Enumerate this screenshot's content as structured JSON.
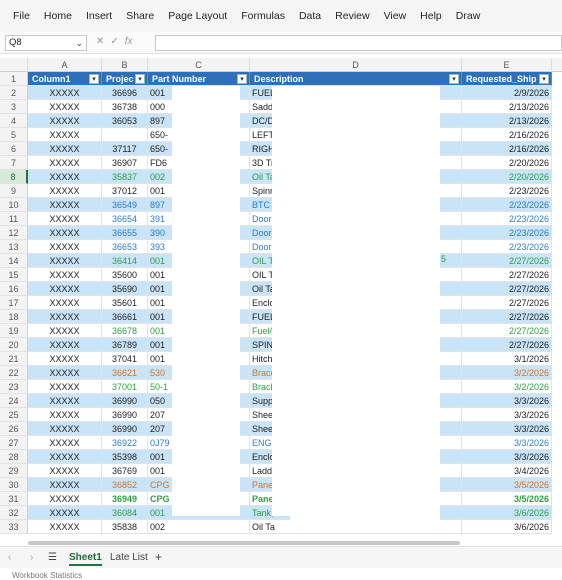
{
  "menu": [
    "File",
    "Home",
    "Insert",
    "Share",
    "Page Layout",
    "Formulas",
    "Data",
    "Review",
    "View",
    "Help",
    "Draw"
  ],
  "name_box": "Q8",
  "col_letters": [
    "A",
    "B",
    "C",
    "D",
    "E"
  ],
  "headers": [
    "Column1",
    "Projec",
    "Part Number",
    "Description",
    "Requested_Ship"
  ],
  "rows": [
    {
      "n": "2",
      "a": "XXXXX",
      "b": "36696",
      "c": "001",
      "d": "FUEL",
      "e": "2/9/2026",
      "color": ""
    },
    {
      "n": "3",
      "a": "XXXXX",
      "b": "36738",
      "c": "000",
      "d": "Sadd",
      "e": "2/13/2026",
      "color": ""
    },
    {
      "n": "4",
      "a": "XXXXX",
      "b": "36053",
      "c": "897",
      "d": "DC/D",
      "e": "2/13/2026",
      "color": ""
    },
    {
      "n": "5",
      "a": "XXXXX",
      "b": "",
      "c": "650-",
      "d": "LEFT",
      "e": "2/16/2026",
      "color": ""
    },
    {
      "n": "6",
      "a": "XXXXX",
      "b": "37117",
      "c": "650-",
      "d": "RIGH",
      "e": "2/16/2026",
      "color": ""
    },
    {
      "n": "7",
      "a": "XXXXX",
      "b": "36907",
      "c": "FD6",
      "d": "3D Tr",
      "e": "2/20/2026",
      "color": ""
    },
    {
      "n": "8",
      "a": "XXXXX",
      "b": "35837",
      "c": "002",
      "d": "Oil Ta",
      "e": "2/20/2026",
      "color": "green"
    },
    {
      "n": "9",
      "a": "XXXXX",
      "b": "37012",
      "c": "001",
      "d": "Spinn",
      "e": "2/23/2026",
      "color": ""
    },
    {
      "n": "10",
      "a": "XXXXX",
      "b": "36549",
      "c": "897",
      "d": "BTC F",
      "e": "2/23/2026",
      "color": "blue"
    },
    {
      "n": "11",
      "a": "XXXXX",
      "b": "36654",
      "c": "391",
      "d": "Door",
      "e": "2/23/2026",
      "color": "blue"
    },
    {
      "n": "12",
      "a": "XXXXX",
      "b": "36655",
      "c": "390",
      "d": "Door",
      "e": "2/23/2026",
      "color": "blue"
    },
    {
      "n": "13",
      "a": "XXXXX",
      "b": "36653",
      "c": "393",
      "d": "Door",
      "e": "2/23/2026",
      "color": "blue"
    },
    {
      "n": "14",
      "a": "XXXXX",
      "b": "36414",
      "c": "001",
      "d": "OIL T",
      "e": "2/27/2026",
      "color": "green"
    },
    {
      "n": "15",
      "a": "XXXXX",
      "b": "35600",
      "c": "001",
      "d": "OIL T",
      "e": "2/27/2026",
      "color": ""
    },
    {
      "n": "16",
      "a": "XXXXX",
      "b": "35690",
      "c": "001",
      "d": "Oil Ta",
      "e": "2/27/2026",
      "color": ""
    },
    {
      "n": "17",
      "a": "XXXXX",
      "b": "35601",
      "c": "001",
      "d": "Enclo",
      "e": "2/27/2026",
      "color": ""
    },
    {
      "n": "18",
      "a": "XXXXX",
      "b": "36661",
      "c": "001",
      "d": "FUEL",
      "e": "2/27/2026",
      "color": ""
    },
    {
      "n": "19",
      "a": "XXXXX",
      "b": "36678",
      "c": "001",
      "d": "Fuel/",
      "e": "2/27/2026",
      "color": "green"
    },
    {
      "n": "20",
      "a": "XXXXX",
      "b": "36789",
      "c": "001",
      "d": "SPINI",
      "e": "2/27/2026",
      "color": ""
    },
    {
      "n": "21",
      "a": "XXXXX",
      "b": "37041",
      "c": "001",
      "d": "Hitch",
      "e": "3/1/2026",
      "color": ""
    },
    {
      "n": "22",
      "a": "XXXXX",
      "b": "36621",
      "c": "530",
      "d": "Brace",
      "e": "3/2/2026",
      "color": "orange"
    },
    {
      "n": "23",
      "a": "XXXXX",
      "b": "37001",
      "c": "50-1",
      "d": "Brack",
      "e": "3/2/2026",
      "color": "green"
    },
    {
      "n": "24",
      "a": "XXXXX",
      "b": "36990",
      "c": "050",
      "d": "Supp",
      "e": "3/3/2026",
      "color": ""
    },
    {
      "n": "25",
      "a": "XXXXX",
      "b": "36990",
      "c": "207",
      "d": "Shee",
      "e": "3/3/2026",
      "color": ""
    },
    {
      "n": "26",
      "a": "XXXXX",
      "b": "36990",
      "c": "207",
      "d": "Shee",
      "e": "3/3/2026",
      "color": ""
    },
    {
      "n": "27",
      "a": "XXXXX",
      "b": "36922",
      "c": "0J79",
      "d": "ENGI",
      "e": "3/3/2026",
      "color": "blue"
    },
    {
      "n": "28",
      "a": "XXXXX",
      "b": "35398",
      "c": "001",
      "d": "Enclo",
      "e": "3/3/2026",
      "color": ""
    },
    {
      "n": "29",
      "a": "XXXXX",
      "b": "36769",
      "c": "001",
      "d": "Ladd",
      "e": "3/4/2026",
      "color": ""
    },
    {
      "n": "30",
      "a": "XXXXX",
      "b": "36852",
      "c": "CPG",
      "d": "Pane",
      "e": "3/5/2026",
      "color": "orange"
    },
    {
      "n": "31",
      "a": "XXXXX",
      "b": "36949",
      "c": "CPG",
      "d": "Pane",
      "e": "3/5/2026",
      "color": "greenbold"
    },
    {
      "n": "32",
      "a": "XXXXX",
      "b": "36084",
      "c": "001",
      "d": "Tank,",
      "e": "3/6/2026",
      "color": "green"
    },
    {
      "n": "33",
      "a": "XXXXX",
      "b": "35838",
      "c": "002",
      "d": "Oil Ta",
      "e": "3/6/2026",
      "color": ""
    }
  ],
  "stray_char": "5",
  "sheet_tabs": [
    "Sheet1",
    "Late List"
  ],
  "add_sheet": "+",
  "status_text": "Workbook Statistics",
  "colors": {
    "header_blue": "#2e6fb7",
    "band": "#c9e4f6",
    "accent_green": "#217346"
  }
}
